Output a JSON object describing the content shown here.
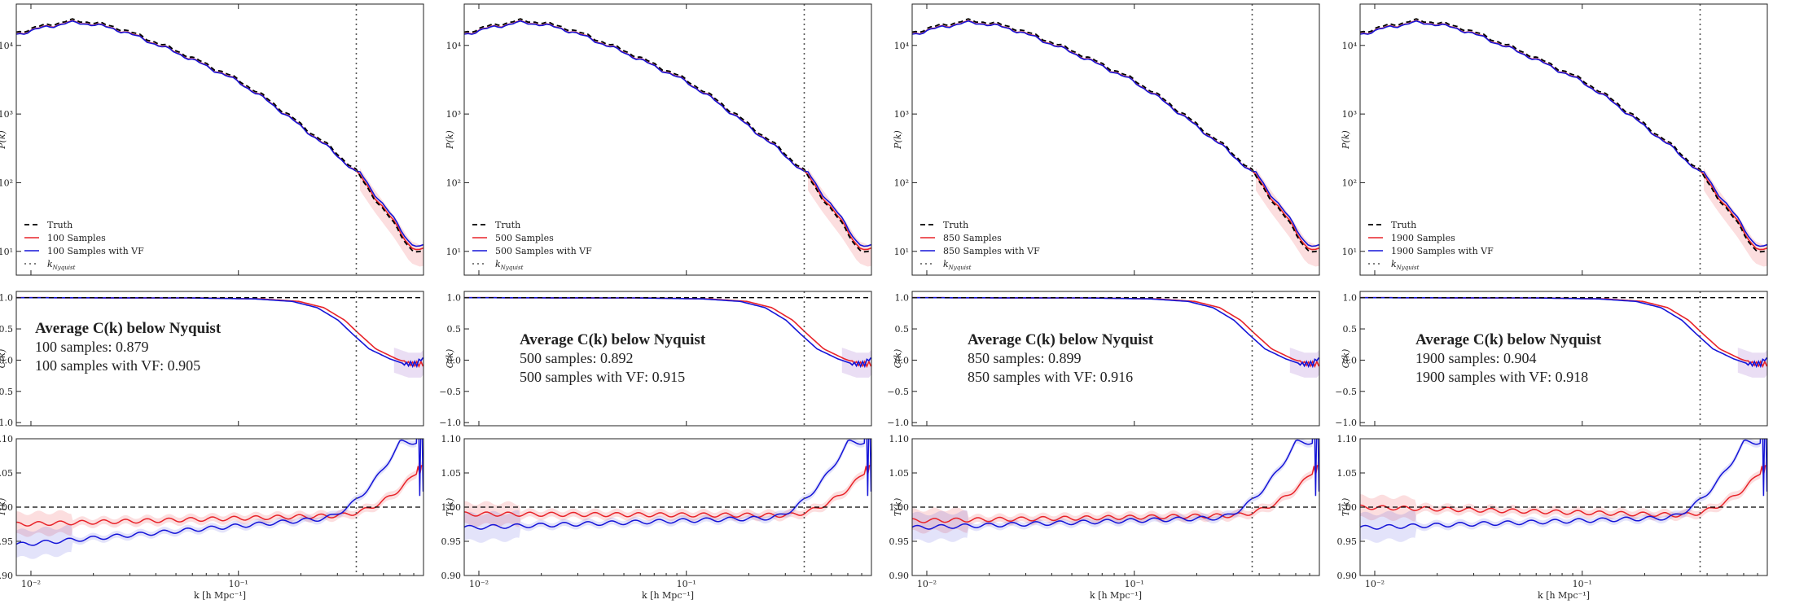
{
  "figure": {
    "x_axis_label": "k [h Mpc⁻¹]",
    "x_tick_labels": [
      "10⁻²",
      "10⁻¹"
    ],
    "colors": {
      "truth": "#000000",
      "samples": "#e8242a",
      "samples_vf": "#1515d8",
      "nyquist": "#555555"
    }
  },
  "chart_data": [
    {
      "type": "line",
      "column": 1,
      "xscale": "log",
      "xlim": [
        0.0085,
        0.78
      ],
      "k_nyquist": 0.37,
      "power": {
        "ylabel": "P(k)",
        "yscale": "log",
        "ylim": [
          4.5,
          40000
        ],
        "yticks": [
          "10¹",
          "10²",
          "10³",
          "10⁴"
        ],
        "legend": [
          "Truth",
          "100 Samples",
          "100 Samples with VF",
          "k_Nyquist"
        ]
      },
      "correlation": {
        "ylabel": "C(k)",
        "ylim": [
          -1.05,
          1.1
        ],
        "yticks": [
          "1.0",
          "0.5",
          "0.0",
          "−0.5",
          "−1.0"
        ],
        "annotation": {
          "title": "Average C(k) below Nyquist",
          "line1": "100 samples: 0.879",
          "line2": "100 samples with VF: 0.905"
        }
      },
      "transfer": {
        "ylabel": "T(k)",
        "ylim": [
          0.9,
          1.1
        ],
        "yticks": [
          "1.10",
          "1.05",
          "1.00",
          "0.95",
          "0.90"
        ],
        "low_k_samples": 0.975,
        "low_k_samples_vf": 0.945
      }
    },
    {
      "type": "line",
      "column": 2,
      "xscale": "log",
      "xlim": [
        0.0085,
        0.78
      ],
      "k_nyquist": 0.37,
      "power": {
        "ylabel": "P(k)",
        "yscale": "log",
        "ylim": [
          4.5,
          40000
        ],
        "yticks": [
          "10¹",
          "10²",
          "10³",
          "10⁴"
        ],
        "legend": [
          "Truth",
          "500 Samples",
          "500 Samples with VF",
          "k_Nyquist"
        ]
      },
      "correlation": {
        "ylabel": "C(k)",
        "ylim": [
          -1.05,
          1.1
        ],
        "yticks": [
          "1.0",
          "0.5",
          "0.0",
          "−0.5",
          "−1.0"
        ],
        "annotation": {
          "title": "Average C(k) below Nyquist",
          "line1": "500  samples: 0.892",
          "line2": "500  samples with VF: 0.915"
        }
      },
      "transfer": {
        "ylabel": "T(k)",
        "ylim": [
          0.9,
          1.1
        ],
        "yticks": [
          "1.10",
          "1.05",
          "1.00",
          "0.95",
          "0.90"
        ],
        "low_k_samples": 0.99,
        "low_k_samples_vf": 0.97
      }
    },
    {
      "type": "line",
      "column": 3,
      "xscale": "log",
      "xlim": [
        0.0085,
        0.78
      ],
      "k_nyquist": 0.37,
      "power": {
        "ylabel": "P(k)",
        "yscale": "log",
        "ylim": [
          4.5,
          40000
        ],
        "yticks": [
          "10¹",
          "10²",
          "10³",
          "10⁴"
        ],
        "legend": [
          "Truth",
          "850 Samples",
          "850 Samples with VF",
          "k_Nyquist"
        ]
      },
      "correlation": {
        "ylabel": "C(k)",
        "ylim": [
          -1.05,
          1.1
        ],
        "yticks": [
          "1.0",
          "0.5",
          "0.0",
          "−0.5",
          "−1.0"
        ],
        "annotation": {
          "title": "Average C(k) below Nyquist",
          "line1": "850  samples: 0.899",
          "line2": "850  samples with VF: 0.916"
        }
      },
      "transfer": {
        "ylabel": "T(k)",
        "ylim": [
          0.9,
          1.1
        ],
        "yticks": [
          "1.10",
          "1.05",
          "1.00",
          "0.95",
          "0.90"
        ],
        "low_k_samples": 0.98,
        "low_k_samples_vf": 0.97
      }
    },
    {
      "type": "line",
      "column": 4,
      "xscale": "log",
      "xlim": [
        0.0085,
        0.78
      ],
      "k_nyquist": 0.37,
      "power": {
        "ylabel": "P(k)",
        "yscale": "log",
        "ylim": [
          4.5,
          40000
        ],
        "yticks": [
          "10¹",
          "10²",
          "10³",
          "10⁴"
        ],
        "legend": [
          "Truth",
          "1900 Samples",
          "1900 Samples with VF",
          "k_Nyquist"
        ]
      },
      "correlation": {
        "ylabel": "C(k)",
        "ylim": [
          -1.05,
          1.1
        ],
        "yticks": [
          "1.0",
          "0.5",
          "0.0",
          "−0.5",
          "−1.0"
        ],
        "annotation": {
          "title": "Average C(k) below Nyquist",
          "line1": "1900 samples: 0.904",
          "line2": "1900 samples with VF: 0.918"
        }
      },
      "transfer": {
        "ylabel": "T(k)",
        "ylim": [
          0.9,
          1.1
        ],
        "yticks": [
          "1.10",
          "1.05",
          "1.00",
          "0.95",
          "0.90"
        ],
        "low_k_samples": 1.0,
        "low_k_samples_vf": 0.97
      }
    }
  ]
}
